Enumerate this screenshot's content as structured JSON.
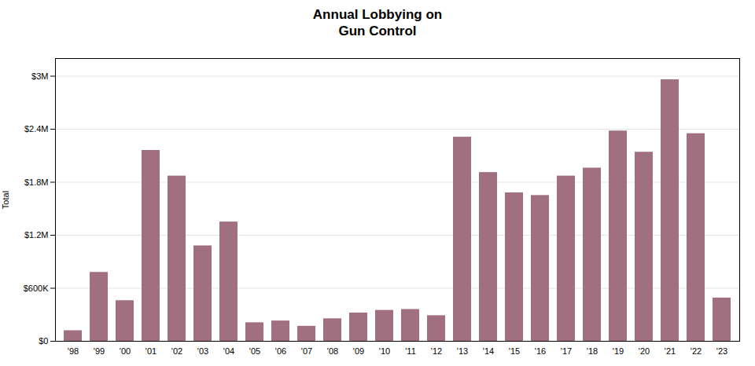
{
  "chart_data": {
    "type": "bar",
    "title": "Annual Lobbying on\nGun Control",
    "ylabel": "Total",
    "categories": [
      "'98",
      "'99",
      "'00",
      "'01",
      "'02",
      "'03",
      "'04",
      "'05",
      "'06",
      "'07",
      "'08",
      "'09",
      "'10",
      "'11",
      "'12",
      "'13",
      "'14",
      "'15",
      "'16",
      "'17",
      "'18",
      "'19",
      "'20",
      "'21",
      "'22",
      "'23"
    ],
    "values": [
      120000,
      780000,
      460000,
      2160000,
      1870000,
      1080000,
      1350000,
      210000,
      230000,
      170000,
      255000,
      320000,
      350000,
      360000,
      290000,
      2310000,
      1910000,
      1680000,
      1650000,
      1870000,
      1960000,
      2380000,
      2140000,
      2960000,
      2350000,
      490000
    ],
    "color": "#a07080",
    "ylim": [
      0,
      3200000
    ],
    "yticks": [
      {
        "value": 0,
        "label": "$0"
      },
      {
        "value": 600000,
        "label": "$600K"
      },
      {
        "value": 1200000,
        "label": "$1.2M"
      },
      {
        "value": 1800000,
        "label": "$1.8M"
      },
      {
        "value": 2400000,
        "label": "$2.4M"
      },
      {
        "value": 3000000,
        "label": "$3M"
      }
    ],
    "grid": true
  }
}
